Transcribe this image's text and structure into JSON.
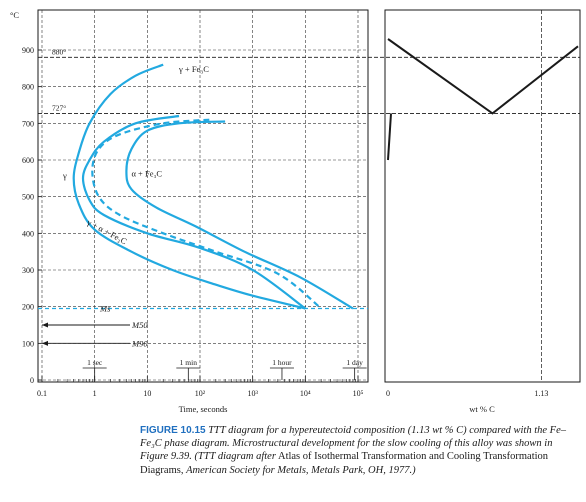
{
  "chart_data": [
    {
      "type": "line",
      "title": "",
      "y_unit": "°C",
      "xlabel": "Time, seconds",
      "ylabel": "",
      "x_scale": "log",
      "xlim": [
        0.1,
        100000
      ],
      "ylim": [
        0,
        900
      ],
      "x_tick_labels": [
        "0.1",
        "1",
        "10",
        "10²",
        "10³",
        "10⁴",
        "10⁵"
      ],
      "x_tick_values": [
        0.1,
        1,
        10,
        100,
        1000,
        10000,
        100000
      ],
      "y_tick_labels": [
        "0",
        "100",
        "200",
        "300",
        "400",
        "500",
        "600",
        "700",
        "800",
        "900"
      ],
      "y_tick_values": [
        0,
        100,
        200,
        300,
        400,
        500,
        600,
        700,
        800,
        900
      ],
      "grid": true,
      "reference_lines": [
        {
          "label": "880°",
          "y": 880
        },
        {
          "label": "727°",
          "y": 727
        }
      ],
      "martensite_lines": [
        {
          "label": "Ms",
          "y": 195,
          "style": "dashed"
        },
        {
          "label": "M50",
          "y": 150,
          "style": "arrow"
        },
        {
          "label": "M90",
          "y": 100,
          "style": "arrow"
        }
      ],
      "time_markers": [
        {
          "label": "1 sec",
          "x": 1
        },
        {
          "label": "1 min",
          "x": 60
        },
        {
          "label": "1 hour",
          "x": 3600
        },
        {
          "label": "1 day",
          "x": 86400
        }
      ],
      "region_labels": [
        {
          "text": "γ + Fe₃C",
          "x": 40,
          "y": 840
        },
        {
          "text": "γ",
          "x": 0.25,
          "y": 550
        },
        {
          "text": "α + Fe₃C",
          "x": 5,
          "y": 555
        },
        {
          "text": "γ + α + Fe₃C",
          "x": 0.7,
          "y": 425
        }
      ],
      "series": [
        {
          "style": "solid",
          "x": [
            20,
            6,
            2,
            0.8,
            0.5,
            0.4,
            0.5,
            1,
            5,
            30,
            200,
            1000,
            10000
          ],
          "y": [
            860,
            830,
            780,
            700,
            620,
            550,
            480,
            410,
            350,
            300,
            260,
            230,
            195
          ]
        },
        {
          "style": "solid",
          "x": [
            40,
            6,
            1.5,
            0.8,
            0.6,
            0.8,
            1.5,
            10,
            100,
            1000,
            10000
          ],
          "y": [
            720,
            700,
            650,
            600,
            550,
            490,
            450,
            400,
            360,
            300,
            195
          ]
        },
        {
          "style": "dashed",
          "x": [
            150,
            20,
            3,
            1.2,
            0.9,
            1.2,
            3,
            20,
            200,
            3000,
            20000
          ],
          "y": [
            710,
            700,
            670,
            630,
            570,
            500,
            450,
            400,
            350,
            290,
            195
          ]
        },
        {
          "style": "solid",
          "x": [
            300,
            40,
            10,
            5,
            4,
            5,
            15,
            80,
            700,
            8000,
            80000
          ],
          "y": [
            705,
            700,
            680,
            630,
            570,
            520,
            470,
            420,
            350,
            280,
            195
          ]
        }
      ]
    },
    {
      "type": "line",
      "title": "",
      "xlabel": "wt % C",
      "ylabel": "",
      "xlim": [
        0,
        1.4
      ],
      "ylim": [
        0,
        900
      ],
      "x_tick_labels": [
        "0",
        "1.13"
      ],
      "x_tick_values": [
        0,
        1.13
      ],
      "series": [
        {
          "x": [
            0,
            0.77,
            1.4
          ],
          "y": [
            930,
            727,
            910
          ]
        },
        {
          "x": [
            0.022,
            0,
            0.022
          ],
          "y": [
            727,
            600,
            727
          ]
        }
      ]
    }
  ],
  "caption": {
    "figure_number": "FIGURE 10.15",
    "text_part1": "TTT diagram for a hypereutectoid composition (1.13",
    "wt_symbol": "wt",
    "text_part2": "% C) compared with the Fe–Fe₃C phase diagram. Microstructural development for the slow cooling of this alloy was shown in Figure 9.39. (TTT diagram after",
    "source_title": "Atlas of Isothermal Transformation and Cooling Transformation Diagrams,",
    "source_pub": "American Society for Metals, Metals Park, OH, 1977.)"
  },
  "colors": {
    "curve": "#22a9e0",
    "ms_line": "#22a9e0",
    "ink": "#1a1a1a",
    "caption_accent": "#1f6fbf"
  }
}
